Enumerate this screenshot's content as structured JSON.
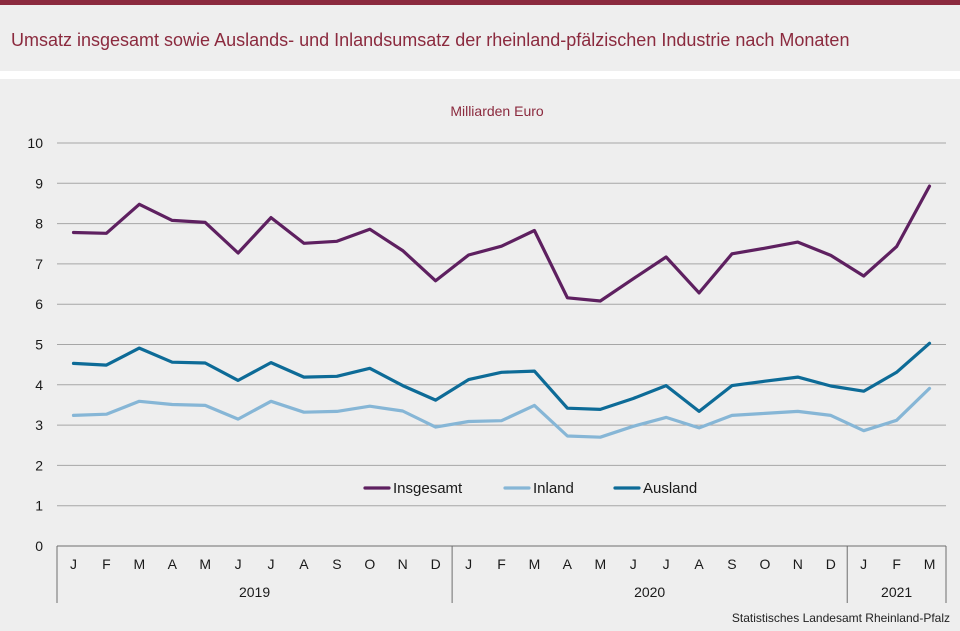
{
  "title": "Umsatz insgesamt sowie Auslands- und Inlandsumsatz der rheinland-pfälzischen Industrie nach Monaten",
  "source": "Statistisches Landesamt  Rheinland-Pfalz",
  "colors": {
    "accent": "#8b2a3e",
    "background": "#eeeeee",
    "Insgesamt": "#5e2060",
    "Inland": "#86b6d6",
    "Ausland": "#0d6b97"
  },
  "chart_data": {
    "type": "line",
    "unit_label": "Milliarden Euro",
    "ylim": [
      0,
      10
    ],
    "yticks": [
      0,
      1,
      2,
      3,
      4,
      5,
      6,
      7,
      8,
      9,
      10
    ],
    "grid": true,
    "legend_position": "bottom-center",
    "categories": [
      "J",
      "F",
      "M",
      "A",
      "M",
      "J",
      "J",
      "A",
      "S",
      "O",
      "N",
      "D",
      "J",
      "F",
      "M",
      "A",
      "M",
      "J",
      "J",
      "A",
      "S",
      "O",
      "N",
      "D",
      "J",
      "F",
      "M"
    ],
    "years": [
      {
        "label": "2019",
        "count": 12
      },
      {
        "label": "2020",
        "count": 12
      },
      {
        "label": "2021",
        "count": 3
      }
    ],
    "series": [
      {
        "name": "Insgesamt",
        "values": [
          7.78,
          7.76,
          8.48,
          8.08,
          8.03,
          7.27,
          8.15,
          7.51,
          7.56,
          7.86,
          7.33,
          6.58,
          7.22,
          7.44,
          7.83,
          6.16,
          6.08,
          6.63,
          7.17,
          6.28,
          7.25,
          7.39,
          7.54,
          7.21,
          6.7,
          7.43,
          8.93
        ]
      },
      {
        "name": "Inland",
        "values": [
          3.24,
          3.27,
          3.59,
          3.51,
          3.49,
          3.15,
          3.59,
          3.32,
          3.34,
          3.47,
          3.35,
          2.95,
          3.09,
          3.11,
          3.49,
          2.73,
          2.7,
          2.97,
          3.19,
          2.93,
          3.24,
          3.29,
          3.34,
          3.24,
          2.86,
          3.12,
          3.91
        ]
      },
      {
        "name": "Ausland",
        "values": [
          4.53,
          4.49,
          4.91,
          4.56,
          4.54,
          4.11,
          4.55,
          4.19,
          4.21,
          4.41,
          3.98,
          3.62,
          4.13,
          4.31,
          4.34,
          3.42,
          3.39,
          3.66,
          3.98,
          3.34,
          3.98,
          4.09,
          4.19,
          3.97,
          3.84,
          4.31,
          5.03
        ]
      }
    ]
  }
}
